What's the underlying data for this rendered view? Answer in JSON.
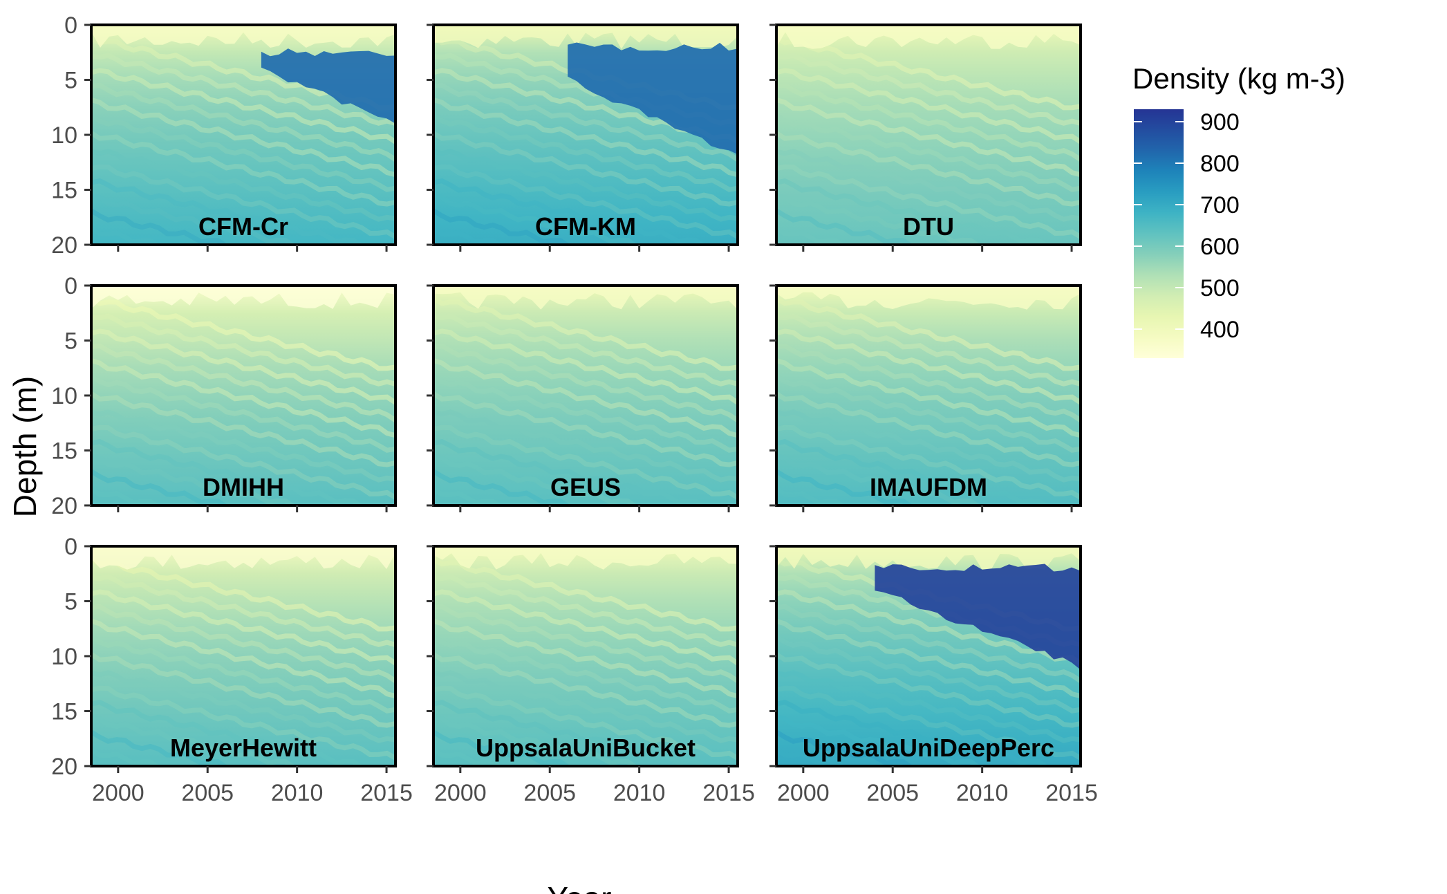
{
  "chart_data": {
    "type": "heatmap",
    "title": "",
    "xlabel": "Year",
    "ylabel": "Depth (m)",
    "x_ticks": [
      2000,
      2005,
      2010,
      2015
    ],
    "y_ticks": [
      0,
      5,
      10,
      15,
      20
    ],
    "xlim": [
      1998.5,
      2015.5
    ],
    "ylim": [
      0,
      20
    ],
    "y_reversed": true,
    "legend": {
      "title": "Density (kg m-3)",
      "position": "right",
      "ticks": [
        900,
        800,
        700,
        600,
        500,
        400
      ],
      "range": [
        330,
        930
      ],
      "colors": [
        "#ffffd9",
        "#edf8b1",
        "#c7e9b4",
        "#7fcdbb",
        "#41b6c4",
        "#1d91c0",
        "#225ea8",
        "#253494"
      ]
    },
    "panels": [
      {
        "name": "CFM-Cr",
        "surface_density": 400,
        "deep_density": 670,
        "dense_layer": {
          "top": 2.5,
          "bottom": [
            4,
            9
          ],
          "from_year": 2008,
          "density": 820
        }
      },
      {
        "name": "CFM-KM",
        "surface_density": 420,
        "deep_density": 690,
        "dense_layer": {
          "top": 2.0,
          "bottom": [
            5,
            12
          ],
          "from_year": 2006,
          "density": 820
        }
      },
      {
        "name": "DTU",
        "surface_density": 400,
        "deep_density": 620,
        "dense_layer": null
      },
      {
        "name": "DMIHH",
        "surface_density": 360,
        "deep_density": 640,
        "dense_layer": null
      },
      {
        "name": "GEUS",
        "surface_density": 400,
        "deep_density": 640,
        "dense_layer": null
      },
      {
        "name": "IMAUFDM",
        "surface_density": 400,
        "deep_density": 650,
        "dense_layer": null
      },
      {
        "name": "MeyerHewitt",
        "surface_density": 380,
        "deep_density": 640,
        "dense_layer": null
      },
      {
        "name": "UppsalaUniBucket",
        "surface_density": 400,
        "deep_density": 640,
        "dense_layer": null
      },
      {
        "name": "UppsalaUniDeepPerc",
        "surface_density": 420,
        "deep_density": 700,
        "dense_layer": {
          "top": 2.0,
          "bottom": [
            4,
            11
          ],
          "from_year": 2004,
          "density": 900
        }
      }
    ]
  }
}
